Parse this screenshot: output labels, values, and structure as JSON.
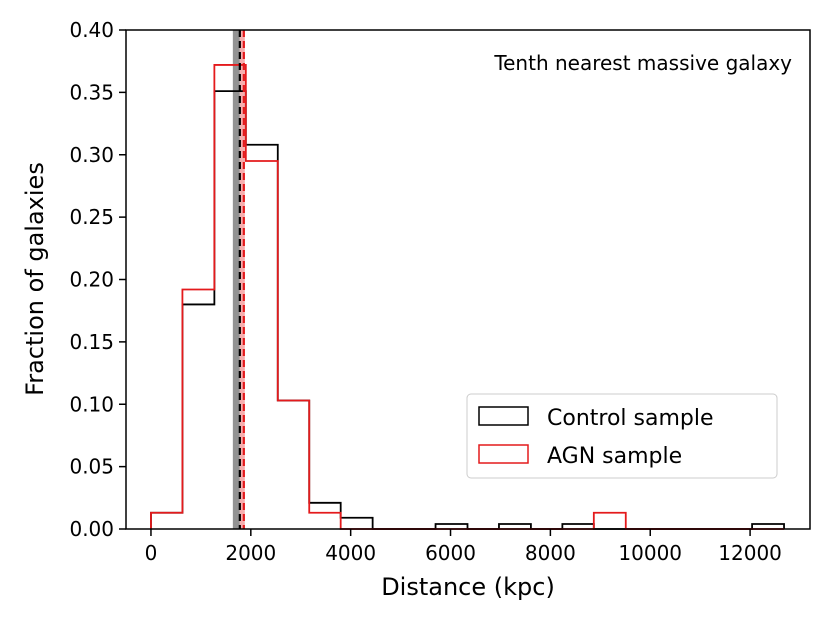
{
  "chart_data": {
    "type": "histogram",
    "title": "",
    "annotation": "Tenth nearest massive galaxy",
    "xlabel": "Distance (kpc)",
    "ylabel": "Fraction of galaxies",
    "xlim": [
      -500,
      13200
    ],
    "ylim": [
      0,
      0.4
    ],
    "xticks": [
      0,
      2000,
      4000,
      6000,
      8000,
      10000,
      12000
    ],
    "yticks": [
      0.0,
      0.05,
      0.1,
      0.15,
      0.2,
      0.25,
      0.3,
      0.35,
      0.4
    ],
    "ytick_labels": [
      "0.00",
      "0.05",
      "0.10",
      "0.15",
      "0.20",
      "0.25",
      "0.30",
      "0.35",
      "0.40"
    ],
    "legend_position": "lower-right",
    "vertical_lines": [
      {
        "name": "control-median",
        "x": 1780,
        "color": "#000000",
        "style": "dashed"
      },
      {
        "name": "agn-median",
        "x": 1860,
        "color": "#e41a1c",
        "style": "dashed"
      }
    ],
    "shaded_bands": [
      {
        "name": "control-median-uncertainty",
        "x0": 1640,
        "x1": 1780,
        "color": "#808080"
      },
      {
        "name": "agn-median-uncertainty",
        "x0": 1780,
        "x1": 1880,
        "color": "#f4a0a0"
      }
    ],
    "series": [
      {
        "name": "Control sample",
        "color": "#000000",
        "edges": [
          0,
          630,
          1270,
          1900,
          2540,
          3170,
          3800,
          4440,
          5070,
          5700,
          6340,
          6970,
          7610,
          8240,
          8870,
          9510,
          10140,
          10780,
          11410,
          12040,
          12680
        ],
        "values": [
          0.013,
          0.18,
          0.351,
          0.308,
          0.103,
          0.021,
          0.009,
          0.0,
          0.0,
          0.004,
          0.0,
          0.004,
          0.0,
          0.004,
          0.0,
          0.0,
          0.0,
          0.0,
          0.0,
          0.004
        ]
      },
      {
        "name": "AGN sample",
        "color": "#e41a1c",
        "edges": [
          0,
          630,
          1270,
          1900,
          2540,
          3170,
          3800,
          4440,
          5070,
          5700,
          6340,
          6970,
          7610,
          8240,
          8870,
          9510,
          10140,
          10780,
          11410,
          12040,
          12680
        ],
        "values": [
          0.013,
          0.192,
          0.372,
          0.295,
          0.103,
          0.013,
          0.0,
          0.0,
          0.0,
          0.0,
          0.0,
          0.0,
          0.0,
          0.0,
          0.013,
          0.0,
          0.0,
          0.0,
          0.0,
          0.0
        ]
      }
    ]
  }
}
